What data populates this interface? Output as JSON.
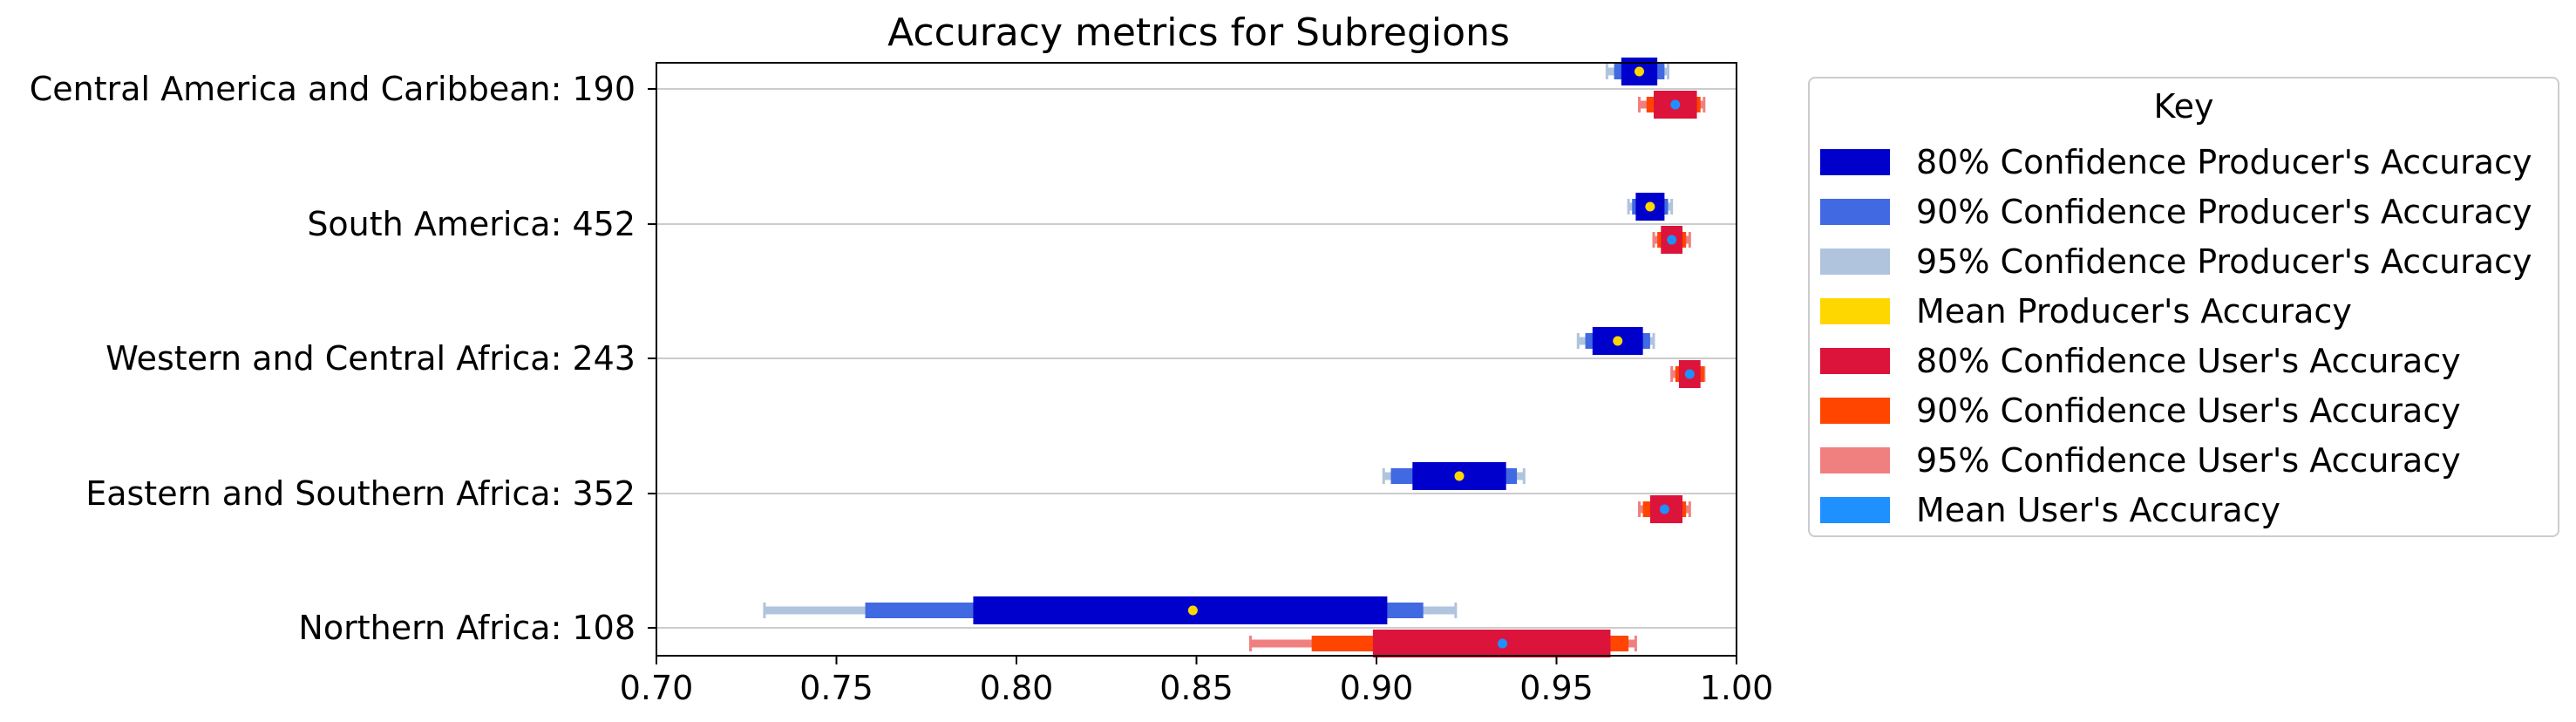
{
  "chart_data": {
    "type": "horizontal-interval",
    "title": "Accuracy metrics for Subregions",
    "xlim": [
      0.7,
      1.0
    ],
    "x_ticks": [
      "0.70",
      "0.75",
      "0.80",
      "0.85",
      "0.90",
      "0.95",
      "1.00"
    ],
    "grid": "horizontal at category rows",
    "categories": [
      {
        "label": "Central America and Caribbean: 190",
        "producer": {
          "mean": 0.973,
          "ci80": [
            0.968,
            0.978
          ],
          "ci90": [
            0.966,
            0.98
          ],
          "ci95": [
            0.964,
            0.981
          ]
        },
        "user": {
          "mean": 0.983,
          "ci80": [
            0.977,
            0.989
          ],
          "ci90": [
            0.975,
            0.99
          ],
          "ci95": [
            0.973,
            0.991
          ]
        }
      },
      {
        "label": "South America: 452",
        "producer": {
          "mean": 0.976,
          "ci80": [
            0.972,
            0.98
          ],
          "ci90": [
            0.971,
            0.981
          ],
          "ci95": [
            0.97,
            0.982
          ]
        },
        "user": {
          "mean": 0.982,
          "ci80": [
            0.979,
            0.985
          ],
          "ci90": [
            0.978,
            0.986
          ],
          "ci95": [
            0.977,
            0.987
          ]
        }
      },
      {
        "label": "Western and Central Africa: 243",
        "producer": {
          "mean": 0.967,
          "ci80": [
            0.96,
            0.974
          ],
          "ci90": [
            0.958,
            0.976
          ],
          "ci95": [
            0.956,
            0.977
          ]
        },
        "user": {
          "mean": 0.987,
          "ci80": [
            0.984,
            0.99
          ],
          "ci90": [
            0.983,
            0.991
          ],
          "ci95": [
            0.982,
            0.991
          ]
        }
      },
      {
        "label": "Eastern and Southern Africa: 352",
        "producer": {
          "mean": 0.923,
          "ci80": [
            0.91,
            0.936
          ],
          "ci90": [
            0.904,
            0.939
          ],
          "ci95": [
            0.902,
            0.941
          ]
        },
        "user": {
          "mean": 0.98,
          "ci80": [
            0.976,
            0.985
          ],
          "ci90": [
            0.974,
            0.986
          ],
          "ci95": [
            0.973,
            0.987
          ]
        }
      },
      {
        "label": "Northern Africa: 108",
        "producer": {
          "mean": 0.849,
          "ci80": [
            0.788,
            0.903
          ],
          "ci90": [
            0.758,
            0.913
          ],
          "ci95": [
            0.73,
            0.922
          ]
        },
        "user": {
          "mean": 0.935,
          "ci80": [
            0.899,
            0.965
          ],
          "ci90": [
            0.882,
            0.97
          ],
          "ci95": [
            0.865,
            0.972
          ]
        }
      }
    ],
    "legend": {
      "title": "Key",
      "placement": "right, outside plot",
      "entries": [
        {
          "label": "80% Confidence Producer's Accuracy",
          "color": "#0000cd"
        },
        {
          "label": "90% Confidence Producer's Accuracy",
          "color": "#4169e1"
        },
        {
          "label": "95% Confidence Producer's Accuracy",
          "color": "#b0c4de"
        },
        {
          "label": "Mean Producer's Accuracy",
          "color": "#ffd700"
        },
        {
          "label": "80% Confidence User's Accuracy",
          "color": "#dc143c"
        },
        {
          "label": "90% Confidence User's Accuracy",
          "color": "#ff4500"
        },
        {
          "label": "95% Confidence User's Accuracy",
          "color": "#f08080"
        },
        {
          "label": "Mean User's Accuracy",
          "color": "#1e90ff"
        }
      ]
    }
  }
}
